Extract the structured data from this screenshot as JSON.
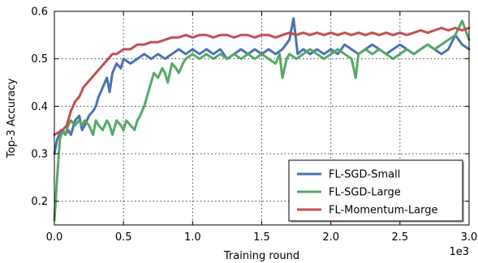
{
  "chart_data": {
    "type": "line",
    "title": "",
    "xlabel": "Training round",
    "ylabel": "Top-3 Accuracy",
    "x_multiplier_label": "1e3",
    "xlim": [
      0,
      3
    ],
    "ylim": [
      0.15,
      0.6
    ],
    "x_ticks": [
      0,
      0.5,
      1,
      1.5,
      2,
      2.5,
      3
    ],
    "x_tick_labels": [
      "0.0",
      "0.5",
      "1.0",
      "1.5",
      "2.0",
      "2.5",
      "3.0"
    ],
    "y_ticks": [
      0.2,
      0.3,
      0.4,
      0.5,
      0.6
    ],
    "y_tick_labels": [
      "0.2",
      "0.3",
      "0.4",
      "0.5",
      "0.6"
    ],
    "grid": true,
    "legend_position": "lower-right",
    "series": [
      {
        "name": "FL-SGD-Small",
        "color": "#4c72b0",
        "points": [
          [
            0.0,
            0.3
          ],
          [
            0.02,
            0.33
          ],
          [
            0.05,
            0.35
          ],
          [
            0.08,
            0.34
          ],
          [
            0.1,
            0.35
          ],
          [
            0.12,
            0.34
          ],
          [
            0.15,
            0.37
          ],
          [
            0.18,
            0.38
          ],
          [
            0.2,
            0.35
          ],
          [
            0.22,
            0.36
          ],
          [
            0.25,
            0.38
          ],
          [
            0.28,
            0.39
          ],
          [
            0.3,
            0.4
          ],
          [
            0.32,
            0.42
          ],
          [
            0.35,
            0.44
          ],
          [
            0.38,
            0.46
          ],
          [
            0.4,
            0.43
          ],
          [
            0.42,
            0.47
          ],
          [
            0.45,
            0.49
          ],
          [
            0.48,
            0.48
          ],
          [
            0.5,
            0.5
          ],
          [
            0.55,
            0.49
          ],
          [
            0.6,
            0.5
          ],
          [
            0.65,
            0.51
          ],
          [
            0.7,
            0.5
          ],
          [
            0.75,
            0.51
          ],
          [
            0.8,
            0.5
          ],
          [
            0.85,
            0.51
          ],
          [
            0.9,
            0.52
          ],
          [
            0.95,
            0.51
          ],
          [
            1.0,
            0.52
          ],
          [
            1.05,
            0.51
          ],
          [
            1.1,
            0.52
          ],
          [
            1.15,
            0.51
          ],
          [
            1.2,
            0.52
          ],
          [
            1.25,
            0.5
          ],
          [
            1.3,
            0.51
          ],
          [
            1.35,
            0.52
          ],
          [
            1.4,
            0.51
          ],
          [
            1.45,
            0.52
          ],
          [
            1.5,
            0.51
          ],
          [
            1.55,
            0.52
          ],
          [
            1.6,
            0.51
          ],
          [
            1.65,
            0.52
          ],
          [
            1.7,
            0.54
          ],
          [
            1.73,
            0.585
          ],
          [
            1.76,
            0.51
          ],
          [
            1.8,
            0.52
          ],
          [
            1.85,
            0.51
          ],
          [
            1.9,
            0.52
          ],
          [
            1.95,
            0.51
          ],
          [
            2.0,
            0.52
          ],
          [
            2.05,
            0.51
          ],
          [
            2.1,
            0.53
          ],
          [
            2.15,
            0.52
          ],
          [
            2.2,
            0.51
          ],
          [
            2.25,
            0.52
          ],
          [
            2.3,
            0.53
          ],
          [
            2.35,
            0.52
          ],
          [
            2.4,
            0.51
          ],
          [
            2.45,
            0.52
          ],
          [
            2.5,
            0.53
          ],
          [
            2.55,
            0.52
          ],
          [
            2.6,
            0.51
          ],
          [
            2.65,
            0.52
          ],
          [
            2.7,
            0.53
          ],
          [
            2.75,
            0.52
          ],
          [
            2.8,
            0.51
          ],
          [
            2.85,
            0.52
          ],
          [
            2.9,
            0.55
          ],
          [
            2.95,
            0.53
          ],
          [
            3.0,
            0.52
          ]
        ]
      },
      {
        "name": "FL-SGD-Large",
        "color": "#55a868",
        "points": [
          [
            0.0,
            0.16
          ],
          [
            0.02,
            0.25
          ],
          [
            0.04,
            0.33
          ],
          [
            0.06,
            0.35
          ],
          [
            0.08,
            0.34
          ],
          [
            0.1,
            0.36
          ],
          [
            0.12,
            0.37
          ],
          [
            0.15,
            0.36
          ],
          [
            0.18,
            0.37
          ],
          [
            0.2,
            0.36
          ],
          [
            0.22,
            0.37
          ],
          [
            0.25,
            0.36
          ],
          [
            0.28,
            0.34
          ],
          [
            0.3,
            0.37
          ],
          [
            0.32,
            0.36
          ],
          [
            0.35,
            0.35
          ],
          [
            0.38,
            0.37
          ],
          [
            0.4,
            0.36
          ],
          [
            0.42,
            0.34
          ],
          [
            0.45,
            0.37
          ],
          [
            0.48,
            0.36
          ],
          [
            0.5,
            0.35
          ],
          [
            0.52,
            0.37
          ],
          [
            0.55,
            0.36
          ],
          [
            0.58,
            0.35
          ],
          [
            0.6,
            0.37
          ],
          [
            0.62,
            0.38
          ],
          [
            0.65,
            0.4
          ],
          [
            0.68,
            0.43
          ],
          [
            0.7,
            0.45
          ],
          [
            0.72,
            0.47
          ],
          [
            0.75,
            0.46
          ],
          [
            0.78,
            0.48
          ],
          [
            0.8,
            0.47
          ],
          [
            0.82,
            0.45
          ],
          [
            0.85,
            0.49
          ],
          [
            0.88,
            0.48
          ],
          [
            0.9,
            0.47
          ],
          [
            0.93,
            0.49
          ],
          [
            0.95,
            0.5
          ],
          [
            1.0,
            0.51
          ],
          [
            1.05,
            0.5
          ],
          [
            1.1,
            0.51
          ],
          [
            1.15,
            0.5
          ],
          [
            1.2,
            0.51
          ],
          [
            1.25,
            0.5
          ],
          [
            1.3,
            0.51
          ],
          [
            1.35,
            0.5
          ],
          [
            1.4,
            0.51
          ],
          [
            1.45,
            0.5
          ],
          [
            1.5,
            0.51
          ],
          [
            1.55,
            0.5
          ],
          [
            1.6,
            0.49
          ],
          [
            1.63,
            0.51
          ],
          [
            1.65,
            0.46
          ],
          [
            1.68,
            0.5
          ],
          [
            1.7,
            0.51
          ],
          [
            1.75,
            0.5
          ],
          [
            1.8,
            0.51
          ],
          [
            1.85,
            0.52
          ],
          [
            1.9,
            0.51
          ],
          [
            1.95,
            0.5
          ],
          [
            2.0,
            0.51
          ],
          [
            2.05,
            0.52
          ],
          [
            2.1,
            0.51
          ],
          [
            2.15,
            0.5
          ],
          [
            2.18,
            0.46
          ],
          [
            2.2,
            0.51
          ],
          [
            2.25,
            0.52
          ],
          [
            2.3,
            0.51
          ],
          [
            2.35,
            0.52
          ],
          [
            2.4,
            0.51
          ],
          [
            2.45,
            0.5
          ],
          [
            2.5,
            0.51
          ],
          [
            2.55,
            0.52
          ],
          [
            2.6,
            0.51
          ],
          [
            2.65,
            0.52
          ],
          [
            2.7,
            0.53
          ],
          [
            2.75,
            0.52
          ],
          [
            2.8,
            0.53
          ],
          [
            2.85,
            0.54
          ],
          [
            2.9,
            0.55
          ],
          [
            2.95,
            0.58
          ],
          [
            3.0,
            0.54
          ]
        ]
      },
      {
        "name": "FL-Momentum-Large",
        "color": "#c44e52",
        "points": [
          [
            0.0,
            0.34
          ],
          [
            0.03,
            0.345
          ],
          [
            0.06,
            0.35
          ],
          [
            0.09,
            0.36
          ],
          [
            0.12,
            0.39
          ],
          [
            0.15,
            0.41
          ],
          [
            0.18,
            0.42
          ],
          [
            0.21,
            0.44
          ],
          [
            0.24,
            0.45
          ],
          [
            0.27,
            0.46
          ],
          [
            0.3,
            0.47
          ],
          [
            0.33,
            0.48
          ],
          [
            0.36,
            0.49
          ],
          [
            0.39,
            0.5
          ],
          [
            0.42,
            0.51
          ],
          [
            0.45,
            0.51
          ],
          [
            0.5,
            0.52
          ],
          [
            0.55,
            0.52
          ],
          [
            0.6,
            0.53
          ],
          [
            0.65,
            0.53
          ],
          [
            0.7,
            0.535
          ],
          [
            0.75,
            0.535
          ],
          [
            0.8,
            0.54
          ],
          [
            0.85,
            0.545
          ],
          [
            0.9,
            0.545
          ],
          [
            0.95,
            0.55
          ],
          [
            1.0,
            0.545
          ],
          [
            1.05,
            0.55
          ],
          [
            1.1,
            0.55
          ],
          [
            1.15,
            0.545
          ],
          [
            1.2,
            0.55
          ],
          [
            1.25,
            0.55
          ],
          [
            1.3,
            0.545
          ],
          [
            1.35,
            0.55
          ],
          [
            1.4,
            0.55
          ],
          [
            1.45,
            0.545
          ],
          [
            1.5,
            0.55
          ],
          [
            1.55,
            0.55
          ],
          [
            1.6,
            0.545
          ],
          [
            1.65,
            0.55
          ],
          [
            1.7,
            0.555
          ],
          [
            1.75,
            0.55
          ],
          [
            1.8,
            0.555
          ],
          [
            1.85,
            0.55
          ],
          [
            1.9,
            0.555
          ],
          [
            1.95,
            0.55
          ],
          [
            2.0,
            0.555
          ],
          [
            2.05,
            0.55
          ],
          [
            2.1,
            0.555
          ],
          [
            2.15,
            0.55
          ],
          [
            2.2,
            0.555
          ],
          [
            2.25,
            0.55
          ],
          [
            2.3,
            0.555
          ],
          [
            2.35,
            0.55
          ],
          [
            2.4,
            0.555
          ],
          [
            2.45,
            0.55
          ],
          [
            2.5,
            0.555
          ],
          [
            2.55,
            0.55
          ],
          [
            2.6,
            0.555
          ],
          [
            2.65,
            0.56
          ],
          [
            2.7,
            0.555
          ],
          [
            2.75,
            0.56
          ],
          [
            2.8,
            0.565
          ],
          [
            2.85,
            0.56
          ],
          [
            2.9,
            0.565
          ],
          [
            2.95,
            0.56
          ],
          [
            3.0,
            0.565
          ]
        ]
      }
    ]
  }
}
